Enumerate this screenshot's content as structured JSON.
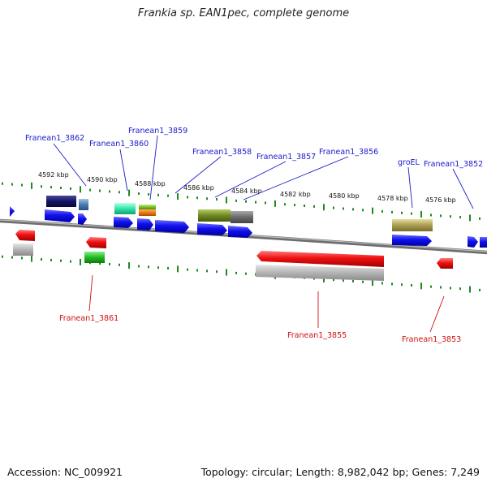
{
  "title": "Frankia sp. EAN1pec, complete genome",
  "accession": "Accession: NC_009921",
  "stats": "Topology: circular; Length: 8,982,042 bp; Genes: 7,249",
  "colors": {
    "forward_label": "#1a1acc",
    "reverse_label": "#cc1111",
    "backbone": "#888888",
    "tick": "#1f8a1f"
  },
  "ticks": [
    {
      "label": "4592 kbp"
    },
    {
      "label": "4590 kbp"
    },
    {
      "label": "4588 kbp"
    },
    {
      "label": "4586 kbp"
    },
    {
      "label": "4584 kbp"
    },
    {
      "label": "4582 kbp"
    },
    {
      "label": "4580 kbp"
    },
    {
      "label": "4578 kbp"
    },
    {
      "label": "4576 kbp"
    }
  ],
  "forward_labels": [
    {
      "name": "Franean1_3862"
    },
    {
      "name": "Franean1_3860"
    },
    {
      "name": "Franean1_3859"
    },
    {
      "name": "Franean1_3858"
    },
    {
      "name": "Franean1_3857"
    },
    {
      "name": "Franean1_3856"
    },
    {
      "name": "groEL"
    },
    {
      "name": "Franean1_3852"
    }
  ],
  "reverse_labels": [
    {
      "name": "Franean1_3861"
    },
    {
      "name": "Franean1_3855"
    },
    {
      "name": "Franean1_3853"
    }
  ]
}
